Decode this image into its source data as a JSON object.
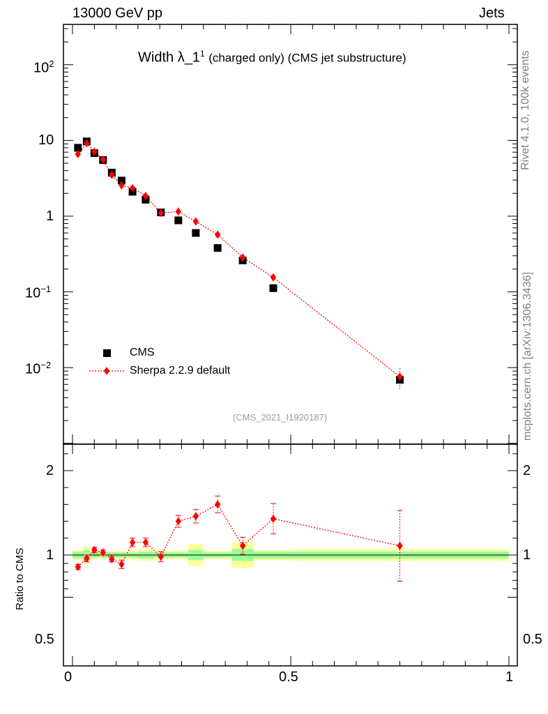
{
  "header": {
    "energy": "13000 GeV pp",
    "process": "Jets",
    "title_main": "Width",
    "title_symbol": "λ_1",
    "title_sup": "1",
    "title_rest": "(charged only) (CMS jet substructure)",
    "analysis": "(CMS_2021_I1920187)",
    "rivet": "Rivet 4.1.0,  100k events",
    "site": "mcplots.cern.ch [arXiv:1306.3436]"
  },
  "chart_data": [
    {
      "type": "scatter",
      "panel": "main",
      "yscale": "log",
      "xlim": [
        0,
        1
      ],
      "ylim": [
        0.001,
        300
      ],
      "ytick_labels": [
        "10^-2",
        "10^-1",
        "1",
        "10",
        "10^2"
      ],
      "legend": [
        "CMS",
        "Sherpa 2.2.9 default"
      ],
      "series": [
        {
          "name": "CMS",
          "color": "#000000",
          "x": [
            0.0125,
            0.0325,
            0.05,
            0.07,
            0.09,
            0.1125,
            0.1375,
            0.1675,
            0.2025,
            0.2425,
            0.2825,
            0.3325,
            0.39,
            0.46,
            0.75
          ],
          "y": [
            8.0,
            9.7,
            6.8,
            5.5,
            3.75,
            2.95,
            2.1,
            1.65,
            1.12,
            0.88,
            0.6,
            0.38,
            0.26,
            0.112,
            0.0069
          ]
        },
        {
          "name": "Sherpa 2.2.9 default",
          "color": "#ff0000",
          "x": [
            0.0125,
            0.0325,
            0.05,
            0.07,
            0.09,
            0.1125,
            0.1375,
            0.1675,
            0.2025,
            0.2425,
            0.2825,
            0.3325,
            0.39,
            0.46,
            0.75
          ],
          "y": [
            6.6,
            9.2,
            7.1,
            5.6,
            3.5,
            2.55,
            2.35,
            1.85,
            1.1,
            1.15,
            0.85,
            0.57,
            0.285,
            0.155,
            0.0076
          ]
        }
      ]
    },
    {
      "type": "scatter",
      "panel": "ratio",
      "ylabel": "Ratio to CMS",
      "xlim": [
        0,
        1
      ],
      "ylim": [
        0.4,
        2.4
      ],
      "ytick_labels": [
        "0.5",
        "1",
        "2"
      ],
      "xtick_labels": [
        "0",
        "0.5",
        "1"
      ],
      "bin_edges": [
        0.0,
        0.025,
        0.04,
        0.06,
        0.08,
        0.1,
        0.125,
        0.15,
        0.185,
        0.22,
        0.265,
        0.3,
        0.365,
        0.415,
        0.505,
        1.0
      ],
      "stat_band": [
        0.04,
        0.06,
        0.03,
        0.03,
        0.03,
        0.03,
        0.03,
        0.04,
        0.03,
        0.03,
        0.06,
        0.03,
        0.07,
        0.04,
        0.04
      ],
      "total_band": [
        0.06,
        0.1,
        0.05,
        0.04,
        0.04,
        0.05,
        0.05,
        0.07,
        0.05,
        0.05,
        0.13,
        0.05,
        0.15,
        0.06,
        0.07
      ],
      "series": [
        {
          "name": "Sherpa 2.2.9 default",
          "color": "#ff0000",
          "x": [
            0.0125,
            0.0325,
            0.05,
            0.07,
            0.09,
            0.1125,
            0.1375,
            0.1675,
            0.2025,
            0.2425,
            0.2825,
            0.3325,
            0.39,
            0.46,
            0.75
          ],
          "y": [
            0.86,
            0.96,
            1.06,
            1.03,
            0.95,
            0.89,
            1.15,
            1.15,
            0.98,
            1.4,
            1.46,
            1.6,
            1.11,
            1.43,
            1.11
          ],
          "err": [
            0.03,
            0.04,
            0.03,
            0.03,
            0.03,
            0.05,
            0.05,
            0.05,
            0.06,
            0.07,
            0.08,
            0.1,
            0.1,
            0.18,
            0.42
          ]
        }
      ]
    }
  ]
}
